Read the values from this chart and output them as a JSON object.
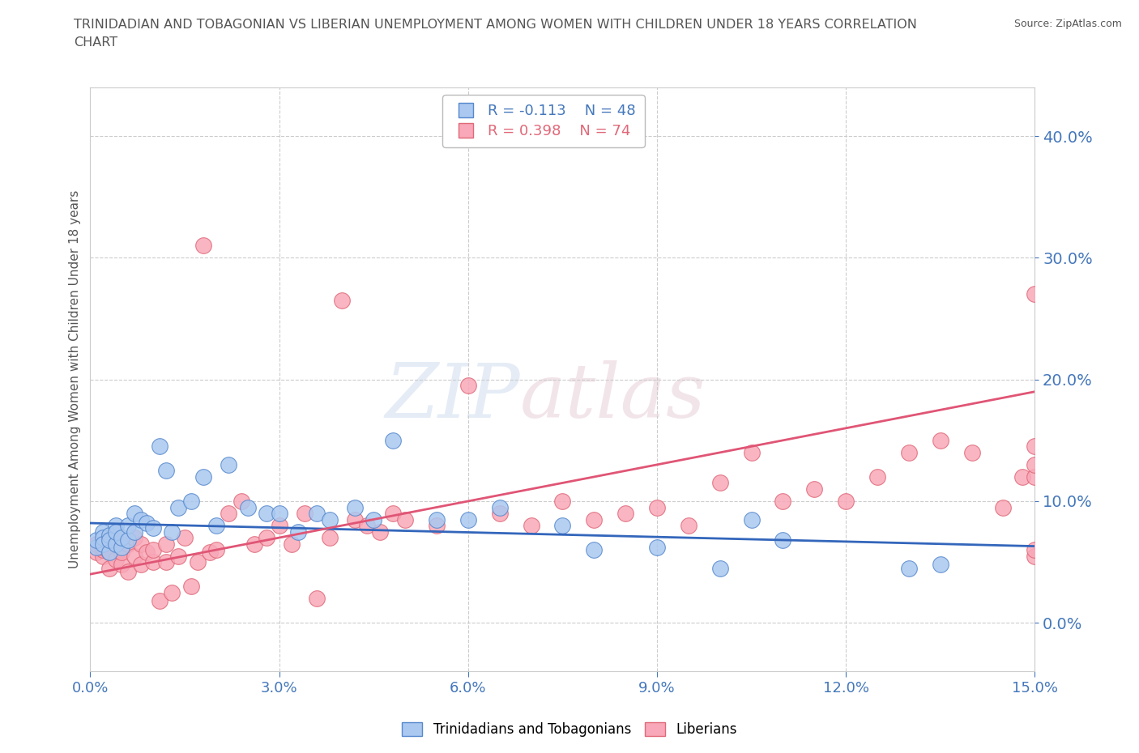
{
  "title": "TRINIDADIAN AND TOBAGONIAN VS LIBERIAN UNEMPLOYMENT AMONG WOMEN WITH CHILDREN UNDER 18 YEARS CORRELATION\nCHART",
  "source": "Source: ZipAtlas.com",
  "ylabel": "Unemployment Among Women with Children Under 18 years",
  "xlim": [
    0.0,
    0.15
  ],
  "ylim": [
    -0.04,
    0.44
  ],
  "yticks": [
    0.0,
    0.1,
    0.2,
    0.3,
    0.4
  ],
  "xticks": [
    0.0,
    0.03,
    0.06,
    0.09,
    0.12,
    0.15
  ],
  "grid_color": "#cccccc",
  "background_color": "#ffffff",
  "legend_r1": "R = -0.113",
  "legend_n1": "N = 48",
  "legend_r2": "R = 0.398",
  "legend_n2": "N = 74",
  "blue_color": "#aac8f0",
  "blue_edge": "#5588cc",
  "pink_color": "#f8a8b8",
  "pink_edge": "#e06878",
  "blue_line_color": "#3366bb",
  "pink_line_color": "#e05575",
  "axis_label_color": "#4477bb",
  "title_color": "#555555",
  "blue_line_x0": 0.0,
  "blue_line_y0": 0.082,
  "blue_line_x1": 0.15,
  "blue_line_y1": 0.063,
  "pink_line_x0": 0.0,
  "pink_line_y0": 0.04,
  "pink_line_x1": 0.15,
  "pink_line_y1": 0.19,
  "trinidadian_x": [
    0.001,
    0.001,
    0.002,
    0.002,
    0.002,
    0.003,
    0.003,
    0.003,
    0.004,
    0.004,
    0.004,
    0.005,
    0.005,
    0.006,
    0.006,
    0.007,
    0.007,
    0.008,
    0.009,
    0.01,
    0.011,
    0.012,
    0.013,
    0.014,
    0.016,
    0.018,
    0.02,
    0.022,
    0.025,
    0.028,
    0.03,
    0.033,
    0.036,
    0.038,
    0.042,
    0.045,
    0.048,
    0.055,
    0.06,
    0.065,
    0.075,
    0.08,
    0.09,
    0.1,
    0.105,
    0.11,
    0.13,
    0.135
  ],
  "trinidadian_y": [
    0.062,
    0.068,
    0.075,
    0.07,
    0.065,
    0.058,
    0.072,
    0.068,
    0.08,
    0.065,
    0.075,
    0.062,
    0.07,
    0.068,
    0.08,
    0.075,
    0.09,
    0.085,
    0.082,
    0.078,
    0.145,
    0.125,
    0.075,
    0.095,
    0.1,
    0.12,
    0.08,
    0.13,
    0.095,
    0.09,
    0.09,
    0.075,
    0.09,
    0.085,
    0.095,
    0.085,
    0.15,
    0.085,
    0.085,
    0.095,
    0.08,
    0.06,
    0.062,
    0.045,
    0.085,
    0.068,
    0.045,
    0.048
  ],
  "liberian_x": [
    0.001,
    0.001,
    0.002,
    0.002,
    0.002,
    0.003,
    0.003,
    0.003,
    0.004,
    0.004,
    0.005,
    0.005,
    0.005,
    0.006,
    0.006,
    0.007,
    0.007,
    0.008,
    0.008,
    0.009,
    0.01,
    0.01,
    0.011,
    0.012,
    0.012,
    0.013,
    0.014,
    0.015,
    0.016,
    0.017,
    0.018,
    0.019,
    0.02,
    0.022,
    0.024,
    0.026,
    0.028,
    0.03,
    0.032,
    0.034,
    0.036,
    0.038,
    0.04,
    0.042,
    0.044,
    0.046,
    0.048,
    0.05,
    0.055,
    0.06,
    0.065,
    0.07,
    0.075,
    0.08,
    0.085,
    0.09,
    0.095,
    0.1,
    0.105,
    0.11,
    0.115,
    0.12,
    0.125,
    0.13,
    0.135,
    0.14,
    0.145,
    0.148,
    0.15,
    0.15,
    0.15,
    0.15,
    0.15,
    0.15
  ],
  "liberian_y": [
    0.058,
    0.065,
    0.055,
    0.06,
    0.062,
    0.045,
    0.058,
    0.07,
    0.052,
    0.068,
    0.048,
    0.06,
    0.058,
    0.042,
    0.065,
    0.055,
    0.07,
    0.048,
    0.065,
    0.058,
    0.05,
    0.06,
    0.018,
    0.05,
    0.065,
    0.025,
    0.055,
    0.07,
    0.03,
    0.05,
    0.31,
    0.058,
    0.06,
    0.09,
    0.1,
    0.065,
    0.07,
    0.08,
    0.065,
    0.09,
    0.02,
    0.07,
    0.265,
    0.085,
    0.08,
    0.075,
    0.09,
    0.085,
    0.08,
    0.195,
    0.09,
    0.08,
    0.1,
    0.085,
    0.09,
    0.095,
    0.08,
    0.115,
    0.14,
    0.1,
    0.11,
    0.1,
    0.12,
    0.14,
    0.15,
    0.14,
    0.095,
    0.12,
    0.145,
    0.12,
    0.055,
    0.13,
    0.27,
    0.06
  ]
}
